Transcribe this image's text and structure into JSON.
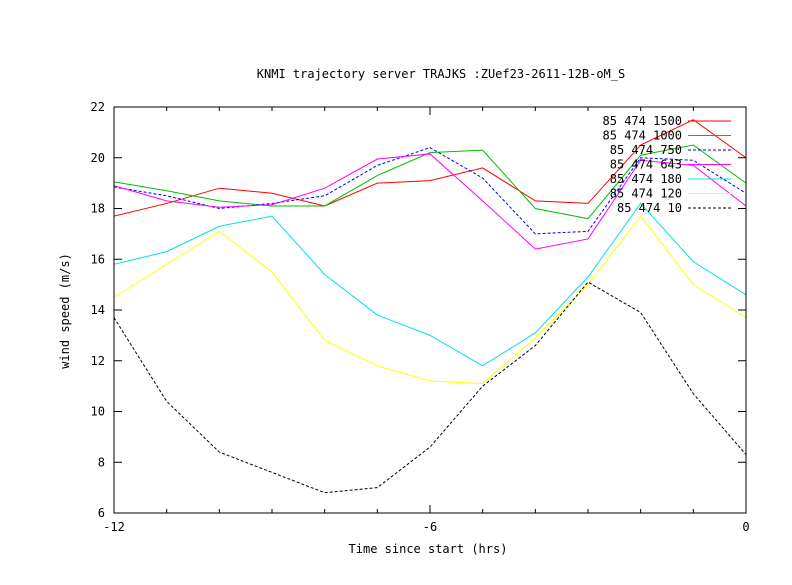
{
  "chart_data": {
    "type": "line",
    "title": "KNMI trajectory server TRAJKS :ZUef23-2611-12B-oM_S",
    "xlabel": "Time since start (hrs)",
    "ylabel": "wind speed (m/s)",
    "xlim": [
      -12,
      0
    ],
    "ylim": [
      6,
      22
    ],
    "x_ticks": [
      -12,
      -6,
      0
    ],
    "y_ticks": [
      6,
      8,
      10,
      12,
      14,
      16,
      18,
      20,
      22
    ],
    "grid": false,
    "legend_position": "top-right",
    "x": [
      -12,
      -11,
      -10,
      -9,
      -8,
      -7,
      -6,
      -5,
      -4,
      -3,
      -2,
      -1,
      0
    ],
    "series": [
      {
        "name": "85 474 1500",
        "color": "#ff0000",
        "dash": "",
        "values": [
          17.7,
          18.2,
          18.8,
          18.6,
          18.1,
          19.0,
          19.1,
          19.6,
          18.3,
          18.2,
          20.5,
          21.5,
          20.0
        ]
      },
      {
        "name": "85 474 1000",
        "color": "#00c000",
        "dash": "",
        "values": [
          19.05,
          18.7,
          18.3,
          18.1,
          18.1,
          19.3,
          20.2,
          20.3,
          18.0,
          17.6,
          20.1,
          20.5,
          19.0
        ]
      },
      {
        "name": "85 474 750",
        "color": "#0000ff",
        "dash": "3,2",
        "values": [
          18.85,
          18.5,
          18.0,
          18.2,
          18.5,
          19.7,
          20.4,
          19.2,
          17.0,
          17.1,
          20.0,
          19.9,
          18.6
        ]
      },
      {
        "name": "85 474 643",
        "color": "#ff00ff",
        "dash": "",
        "values": [
          18.9,
          18.3,
          18.05,
          18.15,
          18.8,
          19.95,
          20.15,
          18.3,
          16.4,
          16.8,
          19.9,
          19.7,
          18.1
        ]
      },
      {
        "name": "85 474 180",
        "color": "#00e0e0",
        "dash": "",
        "values": [
          15.8,
          16.3,
          17.3,
          17.7,
          15.4,
          13.8,
          13.0,
          11.8,
          13.1,
          15.3,
          18.2,
          15.9,
          14.6
        ]
      },
      {
        "name": "85 474 120",
        "color": "#ffff00",
        "dash": "",
        "values": [
          14.5,
          15.8,
          17.1,
          15.5,
          12.8,
          11.8,
          11.2,
          11.1,
          12.9,
          15.0,
          17.7,
          15.0,
          13.7
        ]
      },
      {
        "name": "85 474 10",
        "color": "#000000",
        "dash": "3,2",
        "values": [
          13.7,
          10.4,
          8.4,
          7.6,
          6.8,
          7.0,
          8.6,
          11.0,
          12.6,
          15.1,
          13.9,
          10.7,
          8.3
        ]
      }
    ]
  }
}
